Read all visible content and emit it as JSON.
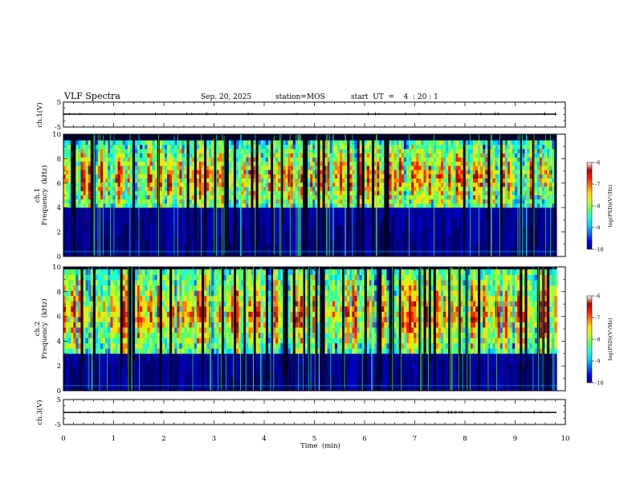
{
  "header": {
    "title": "VLF Spectra",
    "date": "Sep. 20, 2025",
    "station": "station=MOS",
    "start": "start  UT  =    4  : 20 : 1"
  },
  "colors": {
    "jet": [
      "#00008f",
      "#0000ff",
      "#0070ff",
      "#00d0ff",
      "#20ffd0",
      "#60ff60",
      "#c0ff20",
      "#ffe000",
      "#ff8000",
      "#ff2000",
      "#b00000"
    ],
    "colorbar_top": "#ffffff"
  },
  "chart_data": [
    {
      "type": "line",
      "name": "ch1-waveform",
      "ylabel": "ch.1(V)",
      "ylim": [
        -5,
        5
      ],
      "yticks": [
        "5",
        "-5"
      ],
      "xlim": [
        0,
        10
      ],
      "baseline_value": 0,
      "data_end_min": 9.83
    },
    {
      "type": "heatmap",
      "name": "ch1-spectrogram",
      "ylabel_line1": "ch.1",
      "ylabel_line2": "Frequency  (kHz)",
      "ylim": [
        0,
        10
      ],
      "yticks": [
        "0",
        "2",
        "4",
        "6",
        "8",
        "10"
      ],
      "xlim": [
        0,
        10
      ],
      "data_end_min": 9.83,
      "band_khz": [
        4,
        9.5
      ],
      "peak_khz": 6.5,
      "colorbar": {
        "label": "log(PSD)(V²/Hz)",
        "range": [
          -10,
          -6
        ],
        "ticks": [
          "-6",
          "-7",
          "-8",
          "-9",
          "-10"
        ]
      }
    },
    {
      "type": "heatmap",
      "name": "ch2-spectrogram",
      "ylabel_line1": "ch.2",
      "ylabel_line2": "Frequency  (kHz)",
      "ylim": [
        0,
        10
      ],
      "yticks": [
        "0",
        "2",
        "4",
        "6",
        "8",
        "10"
      ],
      "xlim": [
        0,
        10
      ],
      "data_end_min": 9.83,
      "band_khz": [
        3,
        9.8
      ],
      "peak_khz": 6.3,
      "colorbar": {
        "label": "log(PSD)(V²/Hz)",
        "range": [
          -10,
          -6
        ],
        "ticks": [
          "-6",
          "-7",
          "-8",
          "-9",
          "-10"
        ]
      }
    },
    {
      "type": "line",
      "name": "ch3-waveform",
      "ylabel": "ch.3(V)",
      "ylim": [
        -5,
        5
      ],
      "yticks": [
        "5",
        "-5"
      ],
      "xlim": [
        0,
        10
      ],
      "baseline_value": 0,
      "data_end_min": 9.83
    }
  ],
  "xaxis": {
    "label": "Time  (min)",
    "ticks": [
      "0",
      "1",
      "2",
      "3",
      "4",
      "5",
      "6",
      "7",
      "8",
      "9",
      "10"
    ]
  }
}
